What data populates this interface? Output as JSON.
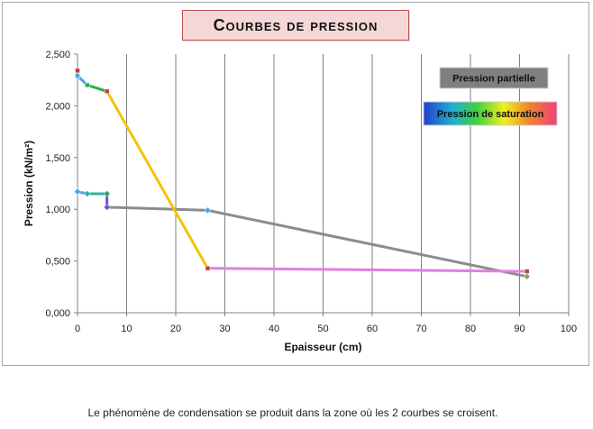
{
  "caption": "Le phénomène de condensation se produit dans la zone où les 2 courbes se croisent.",
  "chart_data": {
    "type": "line",
    "title": "Courbes de pression",
    "xlabel": "Epaisseur (cm)",
    "ylabel": "Pression (kN/m²)",
    "xlim": [
      0,
      100
    ],
    "ylim": [
      0,
      2.5
    ],
    "x_ticks": [
      0,
      10,
      20,
      30,
      40,
      50,
      60,
      70,
      80,
      90,
      100
    ],
    "y_ticks": [
      "0,000",
      "0,500",
      "1,000",
      "1,500",
      "2,000",
      "2,500"
    ],
    "grid": "vertical",
    "legend": [
      {
        "name": "Pression partielle",
        "background": "#808080"
      },
      {
        "name": "Pression de saturation",
        "background": "rainbow"
      }
    ],
    "series": [
      {
        "name": "Pression partielle",
        "points": [
          [
            0,
            1.17
          ],
          [
            2,
            1.15
          ],
          [
            6,
            1.15
          ],
          [
            6,
            1.02
          ],
          [
            26.5,
            0.99
          ],
          [
            91.5,
            0.35
          ]
        ],
        "segment_colors": [
          "#4aa3df",
          "#2bb3a0",
          "#7b4fcf",
          "#8c8c8c",
          "#8c8c8c"
        ],
        "marker_colors": [
          "#4aa3df",
          "#2bb3a0",
          "#2ea060",
          "#6a4fcf",
          "#4aa3df",
          "#8aa060"
        ]
      },
      {
        "name": "Pression de saturation",
        "points": [
          [
            0,
            2.34
          ],
          [
            0,
            2.29
          ],
          [
            2,
            2.2
          ],
          [
            6,
            2.14
          ],
          [
            26.5,
            0.43
          ],
          [
            91.5,
            0.4
          ]
        ],
        "segment_colors": [
          "#d94040",
          "#4aa3df",
          "#2bb04a",
          "#f5c20a",
          "#e080e0"
        ],
        "marker_colors": [
          "#c04040",
          "#4aa3df",
          "#2bb04a",
          "#c04040",
          "#c04040",
          "#c04040"
        ]
      }
    ]
  }
}
